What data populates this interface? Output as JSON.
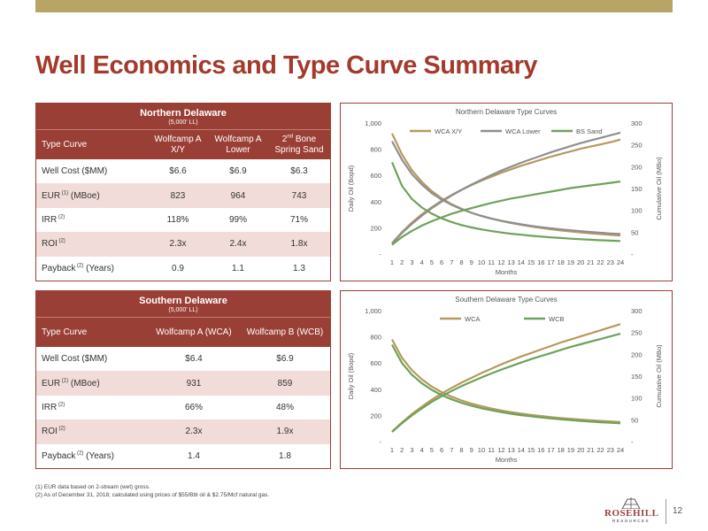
{
  "page": {
    "title": "Well Economics and Type Curve Summary",
    "page_number": "12",
    "footnotes": [
      "(1) EUR data based on 2-stream (wet) gross.",
      "(2) As of December 31, 2018; calculated using prices of $55/Bbl oil & $2.75/Mcf natural gas."
    ],
    "logo": {
      "name": "ROSEHILL",
      "sub": "RESOURCES"
    },
    "colors": {
      "accent": "#9a3f35",
      "title": "#a33a2b",
      "topbar": "#b7a566",
      "alt_row": "#f1dcd9"
    }
  },
  "north_table": {
    "title": "Northern Delaware",
    "subtitle": "(5,000' LL)",
    "header_label": "Type Curve",
    "columns": [
      "Wolfcamp A X/Y",
      "Wolfcamp A Lower",
      "Bone Spring Sand"
    ],
    "col3_prefix": "2",
    "col3_sup": "nd",
    "rows": [
      {
        "label": "Well Cost ($MM)",
        "sup": "",
        "values": [
          "$6.6",
          "$6.9",
          "$6.3"
        ]
      },
      {
        "label": "EUR",
        "sup": "(1)",
        "suffix": "(MBoe)",
        "values": [
          "823",
          "964",
          "743"
        ]
      },
      {
        "label": "IRR",
        "sup": "(2)",
        "suffix": "",
        "values": [
          "118%",
          "99%",
          "71%"
        ]
      },
      {
        "label": "ROI",
        "sup": "(2)",
        "suffix": "",
        "values": [
          "2.3x",
          "2.4x",
          "1.8x"
        ]
      },
      {
        "label": "Payback",
        "sup": "(2)",
        "suffix": "(Years)",
        "values": [
          "0.9",
          "1.1",
          "1.3"
        ]
      }
    ]
  },
  "south_table": {
    "title": "Southern Delaware",
    "subtitle": "(5,000' LL)",
    "header_label": "Type Curve",
    "columns": [
      "Wolfcamp A (WCA)",
      "Wolfcamp B (WCB)"
    ],
    "rows": [
      {
        "label": "Well Cost ($MM)",
        "sup": "",
        "suffix": "",
        "values": [
          "$6.4",
          "$6.9"
        ]
      },
      {
        "label": "EUR",
        "sup": "(1)",
        "suffix": "(MBoe)",
        "values": [
          "931",
          "859"
        ]
      },
      {
        "label": "IRR",
        "sup": "(2)",
        "suffix": "",
        "values": [
          "66%",
          "48%"
        ]
      },
      {
        "label": "ROI",
        "sup": "(2)",
        "suffix": "",
        "values": [
          "2.3x",
          "1.9x"
        ]
      },
      {
        "label": "Payback",
        "sup": "(2)",
        "suffix": "(Years)",
        "values": [
          "1.4",
          "1.8"
        ]
      }
    ]
  },
  "chart_data": [
    {
      "type": "line",
      "title": "Northern Delaware Type Curves",
      "xlabel": "Months",
      "ylabel": "Daily Oil (Bopd)",
      "y2label": "Cumulative Oil (MBo)",
      "x": [
        1,
        2,
        3,
        4,
        5,
        6,
        7,
        8,
        9,
        10,
        11,
        12,
        13,
        14,
        15,
        16,
        17,
        18,
        19,
        20,
        21,
        22,
        23,
        24
      ],
      "ylim": [
        0,
        1000
      ],
      "y2lim": [
        0,
        300
      ],
      "yticks": [
        "-",
        "200",
        "400",
        "600",
        "800",
        "1,000"
      ],
      "y2ticks": [
        "-",
        "50",
        "100",
        "150",
        "200",
        "250",
        "300"
      ],
      "legend": "top",
      "series": [
        {
          "name": "WCA X/Y",
          "color": "#b59a5e",
          "daily": [
            920,
            760,
            640,
            550,
            480,
            425,
            380,
            345,
            315,
            290,
            270,
            252,
            236,
            222,
            210,
            199,
            189,
            180,
            172,
            165,
            158,
            152,
            146,
            141
          ],
          "cum": [
            25,
            50,
            72,
            91,
            107,
            122,
            135,
            147,
            158,
            168,
            177,
            186,
            194,
            202,
            209,
            216,
            223,
            229,
            235,
            241,
            246,
            251,
            256,
            262
          ]
        },
        {
          "name": "WCA Lower",
          "color": "#8f8f8f",
          "daily": [
            860,
            720,
            610,
            530,
            465,
            415,
            375,
            342,
            314,
            291,
            271,
            254,
            240,
            227,
            215,
            205,
            196,
            188,
            181,
            174,
            168,
            162,
            157,
            153
          ],
          "cum": [
            24,
            48,
            69,
            88,
            105,
            120,
            134,
            147,
            159,
            170,
            181,
            191,
            200,
            209,
            217,
            225,
            233,
            240,
            247,
            254,
            260,
            266,
            272,
            278
          ]
        },
        {
          "name": "BS Sand",
          "color": "#6ea25a",
          "daily": [
            700,
            520,
            420,
            355,
            308,
            272,
            244,
            221,
            203,
            188,
            175,
            164,
            155,
            147,
            139,
            133,
            127,
            122,
            117,
            113,
            109,
            105,
            102,
            99
          ],
          "cum": [
            21,
            39,
            53,
            65,
            75,
            84,
            92,
            99,
            105,
            111,
            117,
            122,
            127,
            131,
            135,
            139,
            143,
            147,
            151,
            154,
            157,
            160,
            163,
            166
          ]
        }
      ]
    },
    {
      "type": "line",
      "title": "Southern Delaware Type Curves",
      "xlabel": "Months",
      "ylabel": "Daily Oil (Bopd)",
      "y2label": "Cumulative Oil (MBo)",
      "x": [
        1,
        2,
        3,
        4,
        5,
        6,
        7,
        8,
        9,
        10,
        11,
        12,
        13,
        14,
        15,
        16,
        17,
        18,
        19,
        20,
        21,
        22,
        23,
        24
      ],
      "ylim": [
        0,
        1000
      ],
      "y2lim": [
        0,
        300
      ],
      "yticks": [
        "-",
        "200",
        "400",
        "600",
        "800",
        "1,000"
      ],
      "y2ticks": [
        "-",
        "50",
        "100",
        "150",
        "200",
        "250",
        "300"
      ],
      "legend": "top",
      "series": [
        {
          "name": "WCA",
          "color": "#b59a5e",
          "daily": [
            780,
            640,
            545,
            475,
            420,
            378,
            343,
            314,
            290,
            270,
            253,
            238,
            225,
            214,
            204,
            195,
            187,
            180,
            174,
            168,
            163,
            158,
            154,
            150
          ],
          "cum": [
            23,
            44,
            63,
            80,
            96,
            110,
            123,
            135,
            146,
            157,
            167,
            177,
            186,
            195,
            203,
            211,
            219,
            227,
            234,
            241,
            248,
            255,
            262,
            269
          ]
        },
        {
          "name": "WCB",
          "color": "#6ea25a",
          "daily": [
            740,
            600,
            510,
            445,
            395,
            355,
            323,
            296,
            274,
            255,
            239,
            225,
            213,
            202,
            193,
            185,
            177,
            170,
            164,
            158,
            153,
            148,
            144,
            140
          ],
          "cum": [
            22,
            42,
            60,
            76,
            91,
            104,
            116,
            127,
            137,
            147,
            156,
            165,
            173,
            181,
            189,
            196,
            203,
            210,
            217,
            223,
            229,
            235,
            241,
            247
          ]
        }
      ]
    }
  ]
}
